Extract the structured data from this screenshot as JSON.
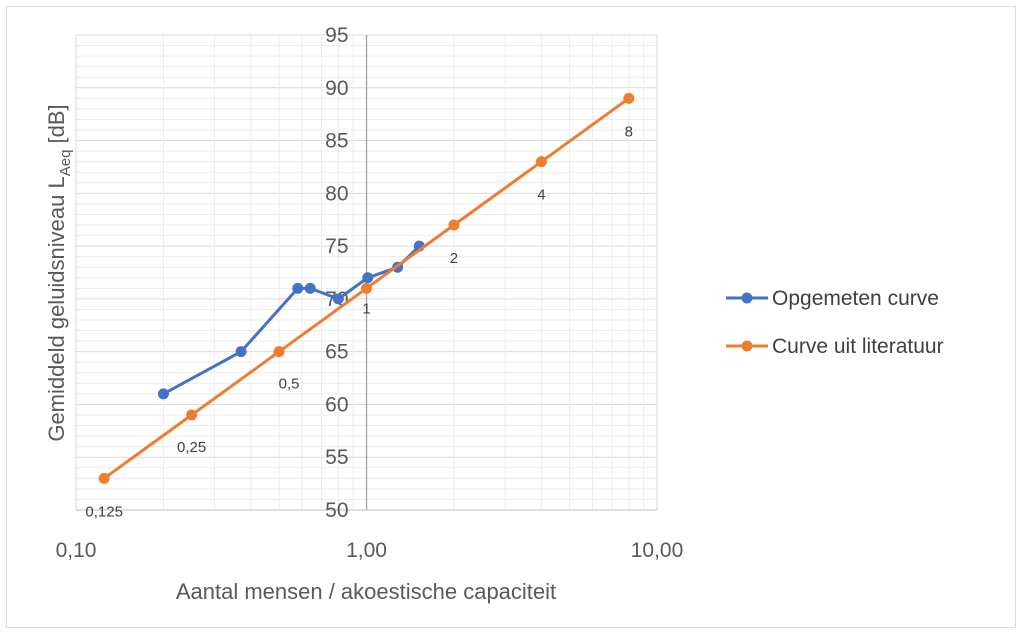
{
  "chart_data": {
    "type": "line",
    "xscale": "log",
    "xlim": [
      0.1,
      10
    ],
    "ylim": [
      50,
      95
    ],
    "xticks": [
      "0,10",
      "1,00",
      "10,00"
    ],
    "yticks": [
      "50",
      "55",
      "60",
      "65",
      "70",
      "75",
      "80",
      "85",
      "90",
      "95"
    ],
    "xlabel": "Aantal mensen / akoestische capaciteit",
    "ylabel": "Gemiddeld geluidsniveau L",
    "ylabel_sub": "Aeq",
    "ylabel_unit": " [dB]",
    "grid": true,
    "legend_position": "right",
    "series": [
      {
        "name": "Opgemeten curve",
        "color": "#4472c4",
        "x": [
          0.2,
          0.37,
          0.58,
          0.64,
          0.8,
          1.01,
          1.28,
          1.52
        ],
        "y": [
          61,
          65,
          71,
          71,
          70,
          72,
          73,
          75
        ],
        "labels": []
      },
      {
        "name": "Curve uit literatuur",
        "color": "#ed7d31",
        "x": [
          0.125,
          0.25,
          0.5,
          1.0,
          2.0,
          4.0,
          8.0
        ],
        "y": [
          53,
          59,
          65,
          71,
          77,
          83,
          89
        ],
        "labels": [
          "0,125",
          "0,25",
          "0,5",
          "1",
          "2",
          "4",
          "8"
        ]
      }
    ]
  }
}
